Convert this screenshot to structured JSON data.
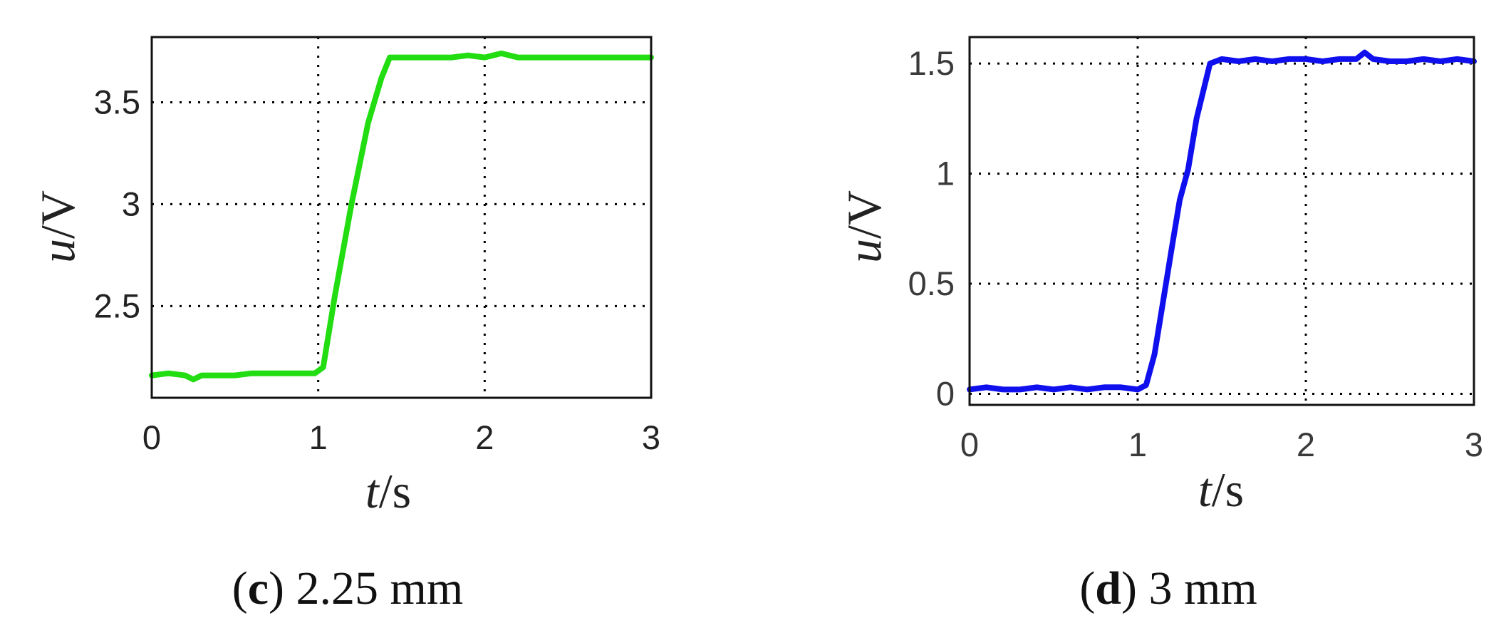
{
  "chart_data": [
    {
      "type": "line",
      "caption_letter": "c",
      "caption_text": " 2.25 mm",
      "xlabel_var": "t",
      "xlabel_unit": "/s",
      "ylabel_var": "u",
      "ylabel_unit": "/V",
      "xlim": [
        0,
        3
      ],
      "ylim": [
        2.05,
        3.82
      ],
      "xticks": [
        0,
        1,
        2,
        3
      ],
      "yticks": [
        2.5,
        3,
        3.5
      ],
      "xtick_labels": [
        "0",
        "1",
        "2",
        "3"
      ],
      "ytick_labels": [
        "2.5",
        "3",
        "3.5"
      ],
      "grid": true,
      "color": "#22dd11",
      "series": [
        {
          "x": [
            0,
            0.1,
            0.2,
            0.25,
            0.3,
            0.4,
            0.5,
            0.6,
            0.7,
            0.8,
            0.9,
            0.98,
            1.03,
            1.1,
            1.2,
            1.3,
            1.38,
            1.43,
            1.5,
            1.6,
            1.7,
            1.8,
            1.9,
            2.0,
            2.1,
            2.2,
            2.3,
            2.4,
            2.5,
            2.6,
            2.7,
            2.8,
            2.9,
            3.0
          ],
          "y": [
            2.16,
            2.17,
            2.16,
            2.14,
            2.16,
            2.16,
            2.16,
            2.17,
            2.17,
            2.17,
            2.17,
            2.17,
            2.2,
            2.55,
            3.0,
            3.4,
            3.62,
            3.72,
            3.72,
            3.72,
            3.72,
            3.72,
            3.73,
            3.72,
            3.74,
            3.72,
            3.72,
            3.72,
            3.72,
            3.72,
            3.72,
            3.72,
            3.72,
            3.72
          ]
        }
      ]
    },
    {
      "type": "line",
      "caption_letter": "d",
      "caption_text": " 3 mm",
      "xlabel_var": "t",
      "xlabel_unit": "/s",
      "ylabel_var": "u",
      "ylabel_unit": "/V",
      "xlim": [
        0,
        3
      ],
      "ylim": [
        -0.05,
        1.62
      ],
      "xticks": [
        0,
        1,
        2,
        3
      ],
      "yticks": [
        0,
        0.5,
        1,
        1.5
      ],
      "xtick_labels": [
        "0",
        "1",
        "2",
        "3"
      ],
      "ytick_labels": [
        "0",
        "0.5",
        "1",
        "1.5"
      ],
      "grid": true,
      "color": "#1010ee",
      "series": [
        {
          "x": [
            0,
            0.1,
            0.2,
            0.3,
            0.4,
            0.5,
            0.6,
            0.7,
            0.8,
            0.9,
            1.0,
            1.05,
            1.1,
            1.2,
            1.25,
            1.3,
            1.35,
            1.43,
            1.5,
            1.6,
            1.7,
            1.8,
            1.9,
            2.0,
            2.1,
            2.2,
            2.3,
            2.35,
            2.4,
            2.5,
            2.6,
            2.7,
            2.8,
            2.9,
            3.0
          ],
          "y": [
            0.02,
            0.03,
            0.02,
            0.02,
            0.03,
            0.02,
            0.03,
            0.02,
            0.03,
            0.03,
            0.02,
            0.04,
            0.18,
            0.65,
            0.88,
            1.02,
            1.25,
            1.5,
            1.52,
            1.51,
            1.52,
            1.51,
            1.52,
            1.52,
            1.51,
            1.52,
            1.52,
            1.55,
            1.52,
            1.51,
            1.51,
            1.52,
            1.51,
            1.52,
            1.51
          ]
        }
      ]
    }
  ]
}
